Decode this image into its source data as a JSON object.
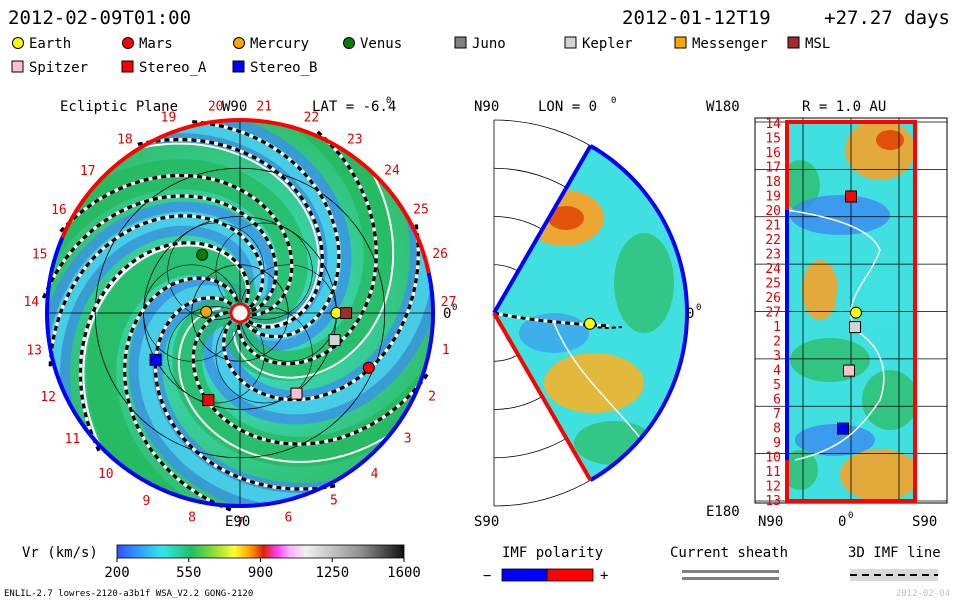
{
  "header": {
    "left_datetime": "2012-02-09T01:00",
    "right_datetime": "2012-01-12T19",
    "right_offset": "+27.27 days"
  },
  "legend": [
    {
      "name": "Earth",
      "fill": "#ffff00",
      "shape": "circle"
    },
    {
      "name": "Mars",
      "fill": "#ff0000",
      "shape": "circle"
    },
    {
      "name": "Mercury",
      "fill": "#ffa500",
      "shape": "circle"
    },
    {
      "name": "Venus",
      "fill": "#008000",
      "shape": "circle"
    },
    {
      "name": "Juno",
      "fill": "#808080",
      "shape": "square"
    },
    {
      "name": "Kepler",
      "fill": "#d3d3d3",
      "shape": "square"
    },
    {
      "name": "Messenger",
      "fill": "#ffa500",
      "shape": "square"
    },
    {
      "name": "MSL",
      "fill": "#a52a2a",
      "shape": "square"
    },
    {
      "name": "Spitzer",
      "fill": "#ffc0cb",
      "shape": "square"
    },
    {
      "name": "Stereo_A",
      "fill": "#ff0000",
      "shape": "square"
    },
    {
      "name": "Stereo_B",
      "fill": "#0000ff",
      "shape": "square"
    }
  ],
  "colors": {
    "earth": "#ffff00",
    "mars": "#ff0000",
    "mercury": "#ffa500",
    "venus": "#008000",
    "kepler": "#d3d3d3",
    "msl": "#a52a2a",
    "spitzer": "#ffc0cb",
    "stereo_a": "#ff0000",
    "stereo_b": "#0000ff",
    "rim_pos": "#ff0000",
    "rim_neg": "#0000ff"
  },
  "ecliptic": {
    "title": "Ecliptic Plane",
    "top_label": "W90",
    "bottom_label": "E90",
    "right_label": "0",
    "right_label_sup": "0",
    "lat_label": "LAT = -6.4",
    "lat_sup": "0",
    "rotation_labels": [
      "19",
      "20",
      "21",
      "22",
      "23",
      "24",
      "25",
      "26",
      "27",
      "1",
      "2",
      "3",
      "4",
      "5",
      "6",
      "7",
      "8",
      "9",
      "10",
      "11",
      "12",
      "13",
      "14",
      "15",
      "16",
      "17",
      "18"
    ]
  },
  "meridional": {
    "top_left": "N90",
    "lon_label": "LON = 0",
    "lon_sup": "0",
    "right_label": "0",
    "right_label_sup": "0",
    "bottom_left": "S90"
  },
  "carrington": {
    "top_left": "W180",
    "r_label": "R = 1.0 AU",
    "bottom_left": "E180",
    "bottom_labels": [
      "N90",
      "0",
      "S90"
    ],
    "bottom_sup": "0",
    "row_labels": [
      "14",
      "15",
      "16",
      "17",
      "18",
      "19",
      "20",
      "21",
      "22",
      "23",
      "24",
      "25",
      "26",
      "27",
      "1",
      "2",
      "3",
      "4",
      "5",
      "6",
      "7",
      "8",
      "9",
      "10",
      "11",
      "12",
      "13"
    ]
  },
  "colorbar": {
    "label": "Vr (km/s)",
    "ticks": [
      "200",
      "550",
      "900",
      "1250",
      "1600"
    ],
    "min": 200,
    "max": 1600
  },
  "imf": {
    "label": "IMF polarity",
    "minus": "−",
    "plus": "+"
  },
  "current_sheath": {
    "label": "Current sheath"
  },
  "imf_line": {
    "label": "3D IMF line"
  },
  "footer": {
    "left": "ENLIL-2.7 lowres-2120-a3b1f WSA_V2.2 GONG-2120",
    "right": "2012-02-04"
  },
  "chart_data": [
    {
      "type": "heatmap",
      "title": "Ecliptic Plane",
      "quantity": "Vr (km/s)",
      "bodies": [
        {
          "name": "Earth",
          "radius_au": 1.0,
          "lon_deg": 0
        },
        {
          "name": "Mars",
          "radius_au": 1.45,
          "lon_deg": -23
        },
        {
          "name": "Mercury",
          "radius_au": 0.35,
          "lon_deg": 178
        },
        {
          "name": "Venus",
          "radius_au": 0.72,
          "lon_deg": 123
        },
        {
          "name": "Kepler",
          "radius_au": 1.02,
          "lon_deg": -16
        },
        {
          "name": "MSL",
          "radius_au": 1.1,
          "lon_deg": 0
        },
        {
          "name": "Spitzer",
          "radius_au": 1.02,
          "lon_deg": -55
        },
        {
          "name": "Stereo_A",
          "radius_au": 0.96,
          "lon_deg": -110
        },
        {
          "name": "Stereo_B",
          "radius_au": 1.0,
          "lon_deg": -151
        }
      ]
    },
    {
      "type": "heatmap",
      "title": "Meridional Plane",
      "quantity": "Vr (km/s)",
      "lon": "0",
      "bodies": [
        {
          "name": "Earth",
          "radius_au": 1.0,
          "lat_deg": -6.4
        }
      ]
    },
    {
      "type": "heatmap",
      "title": "R = 1.0 AU",
      "quantity": "Vr (km/s)",
      "bodies": [
        {
          "name": "Stereo_A",
          "rotation_label": "19"
        },
        {
          "name": "Earth",
          "rotation_label": "27"
        },
        {
          "name": "Kepler",
          "rotation_label": "1"
        },
        {
          "name": "Spitzer",
          "rotation_label": "4"
        },
        {
          "name": "Stereo_B",
          "rotation_label": "8"
        }
      ]
    }
  ]
}
